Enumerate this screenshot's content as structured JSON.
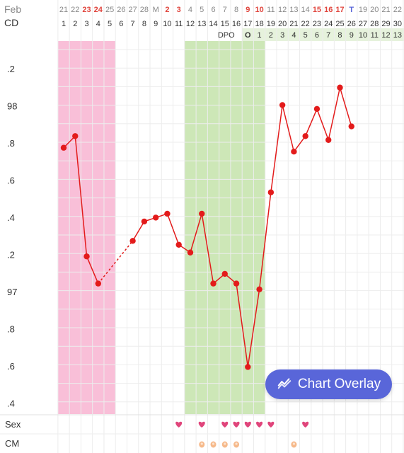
{
  "header": {
    "month_label": "Feb",
    "cd_label": "CD",
    "dpo_label": "DPO"
  },
  "dates": [
    {
      "d": "21",
      "c": "#888888",
      "w": "normal"
    },
    {
      "d": "22",
      "c": "#888888",
      "w": "normal"
    },
    {
      "d": "23",
      "c": "#e0453d",
      "w": "bold"
    },
    {
      "d": "24",
      "c": "#e0453d",
      "w": "bold"
    },
    {
      "d": "25",
      "c": "#888888",
      "w": "normal"
    },
    {
      "d": "26",
      "c": "#888888",
      "w": "normal"
    },
    {
      "d": "27",
      "c": "#888888",
      "w": "normal"
    },
    {
      "d": "28",
      "c": "#888888",
      "w": "normal"
    },
    {
      "d": "M",
      "c": "#888888",
      "w": "normal"
    },
    {
      "d": "2",
      "c": "#e0453d",
      "w": "bold"
    },
    {
      "d": "3",
      "c": "#e0453d",
      "w": "bold"
    },
    {
      "d": "4",
      "c": "#888888",
      "w": "normal"
    },
    {
      "d": "5",
      "c": "#888888",
      "w": "normal"
    },
    {
      "d": "6",
      "c": "#888888",
      "w": "normal"
    },
    {
      "d": "7",
      "c": "#888888",
      "w": "normal"
    },
    {
      "d": "8",
      "c": "#888888",
      "w": "normal"
    },
    {
      "d": "9",
      "c": "#e0453d",
      "w": "bold"
    },
    {
      "d": "10",
      "c": "#e0453d",
      "w": "bold"
    },
    {
      "d": "11",
      "c": "#888888",
      "w": "normal"
    },
    {
      "d": "12",
      "c": "#888888",
      "w": "normal"
    },
    {
      "d": "13",
      "c": "#888888",
      "w": "normal"
    },
    {
      "d": "14",
      "c": "#888888",
      "w": "normal"
    },
    {
      "d": "15",
      "c": "#e0453d",
      "w": "bold"
    },
    {
      "d": "16",
      "c": "#e0453d",
      "w": "bold"
    },
    {
      "d": "17",
      "c": "#e0453d",
      "w": "bold"
    },
    {
      "d": "T",
      "c": "#5966d9",
      "w": "bold"
    },
    {
      "d": "19",
      "c": "#888888",
      "w": "normal"
    },
    {
      "d": "20",
      "c": "#888888",
      "w": "normal"
    },
    {
      "d": "21",
      "c": "#888888",
      "w": "normal"
    },
    {
      "d": "22",
      "c": "#888888",
      "w": "normal"
    }
  ],
  "cycle_days": [
    "1",
    "2",
    "3",
    "4",
    "5",
    "6",
    "7",
    "8",
    "9",
    "10",
    "11",
    "12",
    "13",
    "14",
    "15",
    "16",
    "17",
    "18",
    "19",
    "20",
    "21",
    "22",
    "23",
    "24",
    "25",
    "26",
    "27",
    "28",
    "29",
    "30"
  ],
  "dpo_values": [
    "O",
    "1",
    "2",
    "3",
    "4",
    "5",
    "6",
    "7",
    "8",
    "9",
    "10",
    "11",
    "12",
    "13"
  ],
  "y_axis_labels": [
    ".2",
    "98",
    ".8",
    ".6",
    ".4",
    ".2",
    "97",
    ".8",
    ".6",
    ".4"
  ],
  "row_labels": {
    "sex": "Sex",
    "cm": "CM"
  },
  "overlay_button": {
    "label": "Chart Overlay",
    "icon": "trend-chart-icon"
  },
  "colors": {
    "period": "#f9bfd8",
    "fertile": "#cde7b7",
    "line": "#e31b1b",
    "dpo_bg": "#e6f2dc",
    "accent": "#5966d9",
    "heart": "#e0457b"
  },
  "chart_data": {
    "type": "line",
    "title": "",
    "xlabel": "CD",
    "ylabel": "",
    "ylim": [
      96.35,
      98.32
    ],
    "x": [
      1,
      2,
      3,
      4,
      5,
      6,
      7,
      8,
      9,
      10,
      11,
      12,
      13,
      14,
      15,
      16,
      17,
      18,
      19,
      20,
      21,
      22,
      23,
      24,
      25,
      26
    ],
    "series": [
      {
        "values": [
          97.73,
          97.79,
          97.17,
          97.03,
          null,
          null,
          97.25,
          97.35,
          97.37,
          97.39,
          97.23,
          97.19,
          97.39,
          97.03,
          97.08,
          97.03,
          96.6,
          97.0,
          97.5,
          97.95,
          97.71,
          97.79,
          97.93,
          97.77,
          98.04,
          97.84
        ]
      }
    ],
    "dotted_segments": [
      [
        4,
        7
      ]
    ],
    "period_days": [
      1,
      2,
      3,
      4,
      5
    ],
    "fertile_window_days": [
      12,
      13,
      14,
      15,
      16,
      17,
      18
    ],
    "sex_days": [
      11,
      13,
      15,
      16,
      17,
      18,
      19,
      22
    ],
    "cm_days": [
      13,
      14,
      15,
      16,
      21
    ]
  }
}
